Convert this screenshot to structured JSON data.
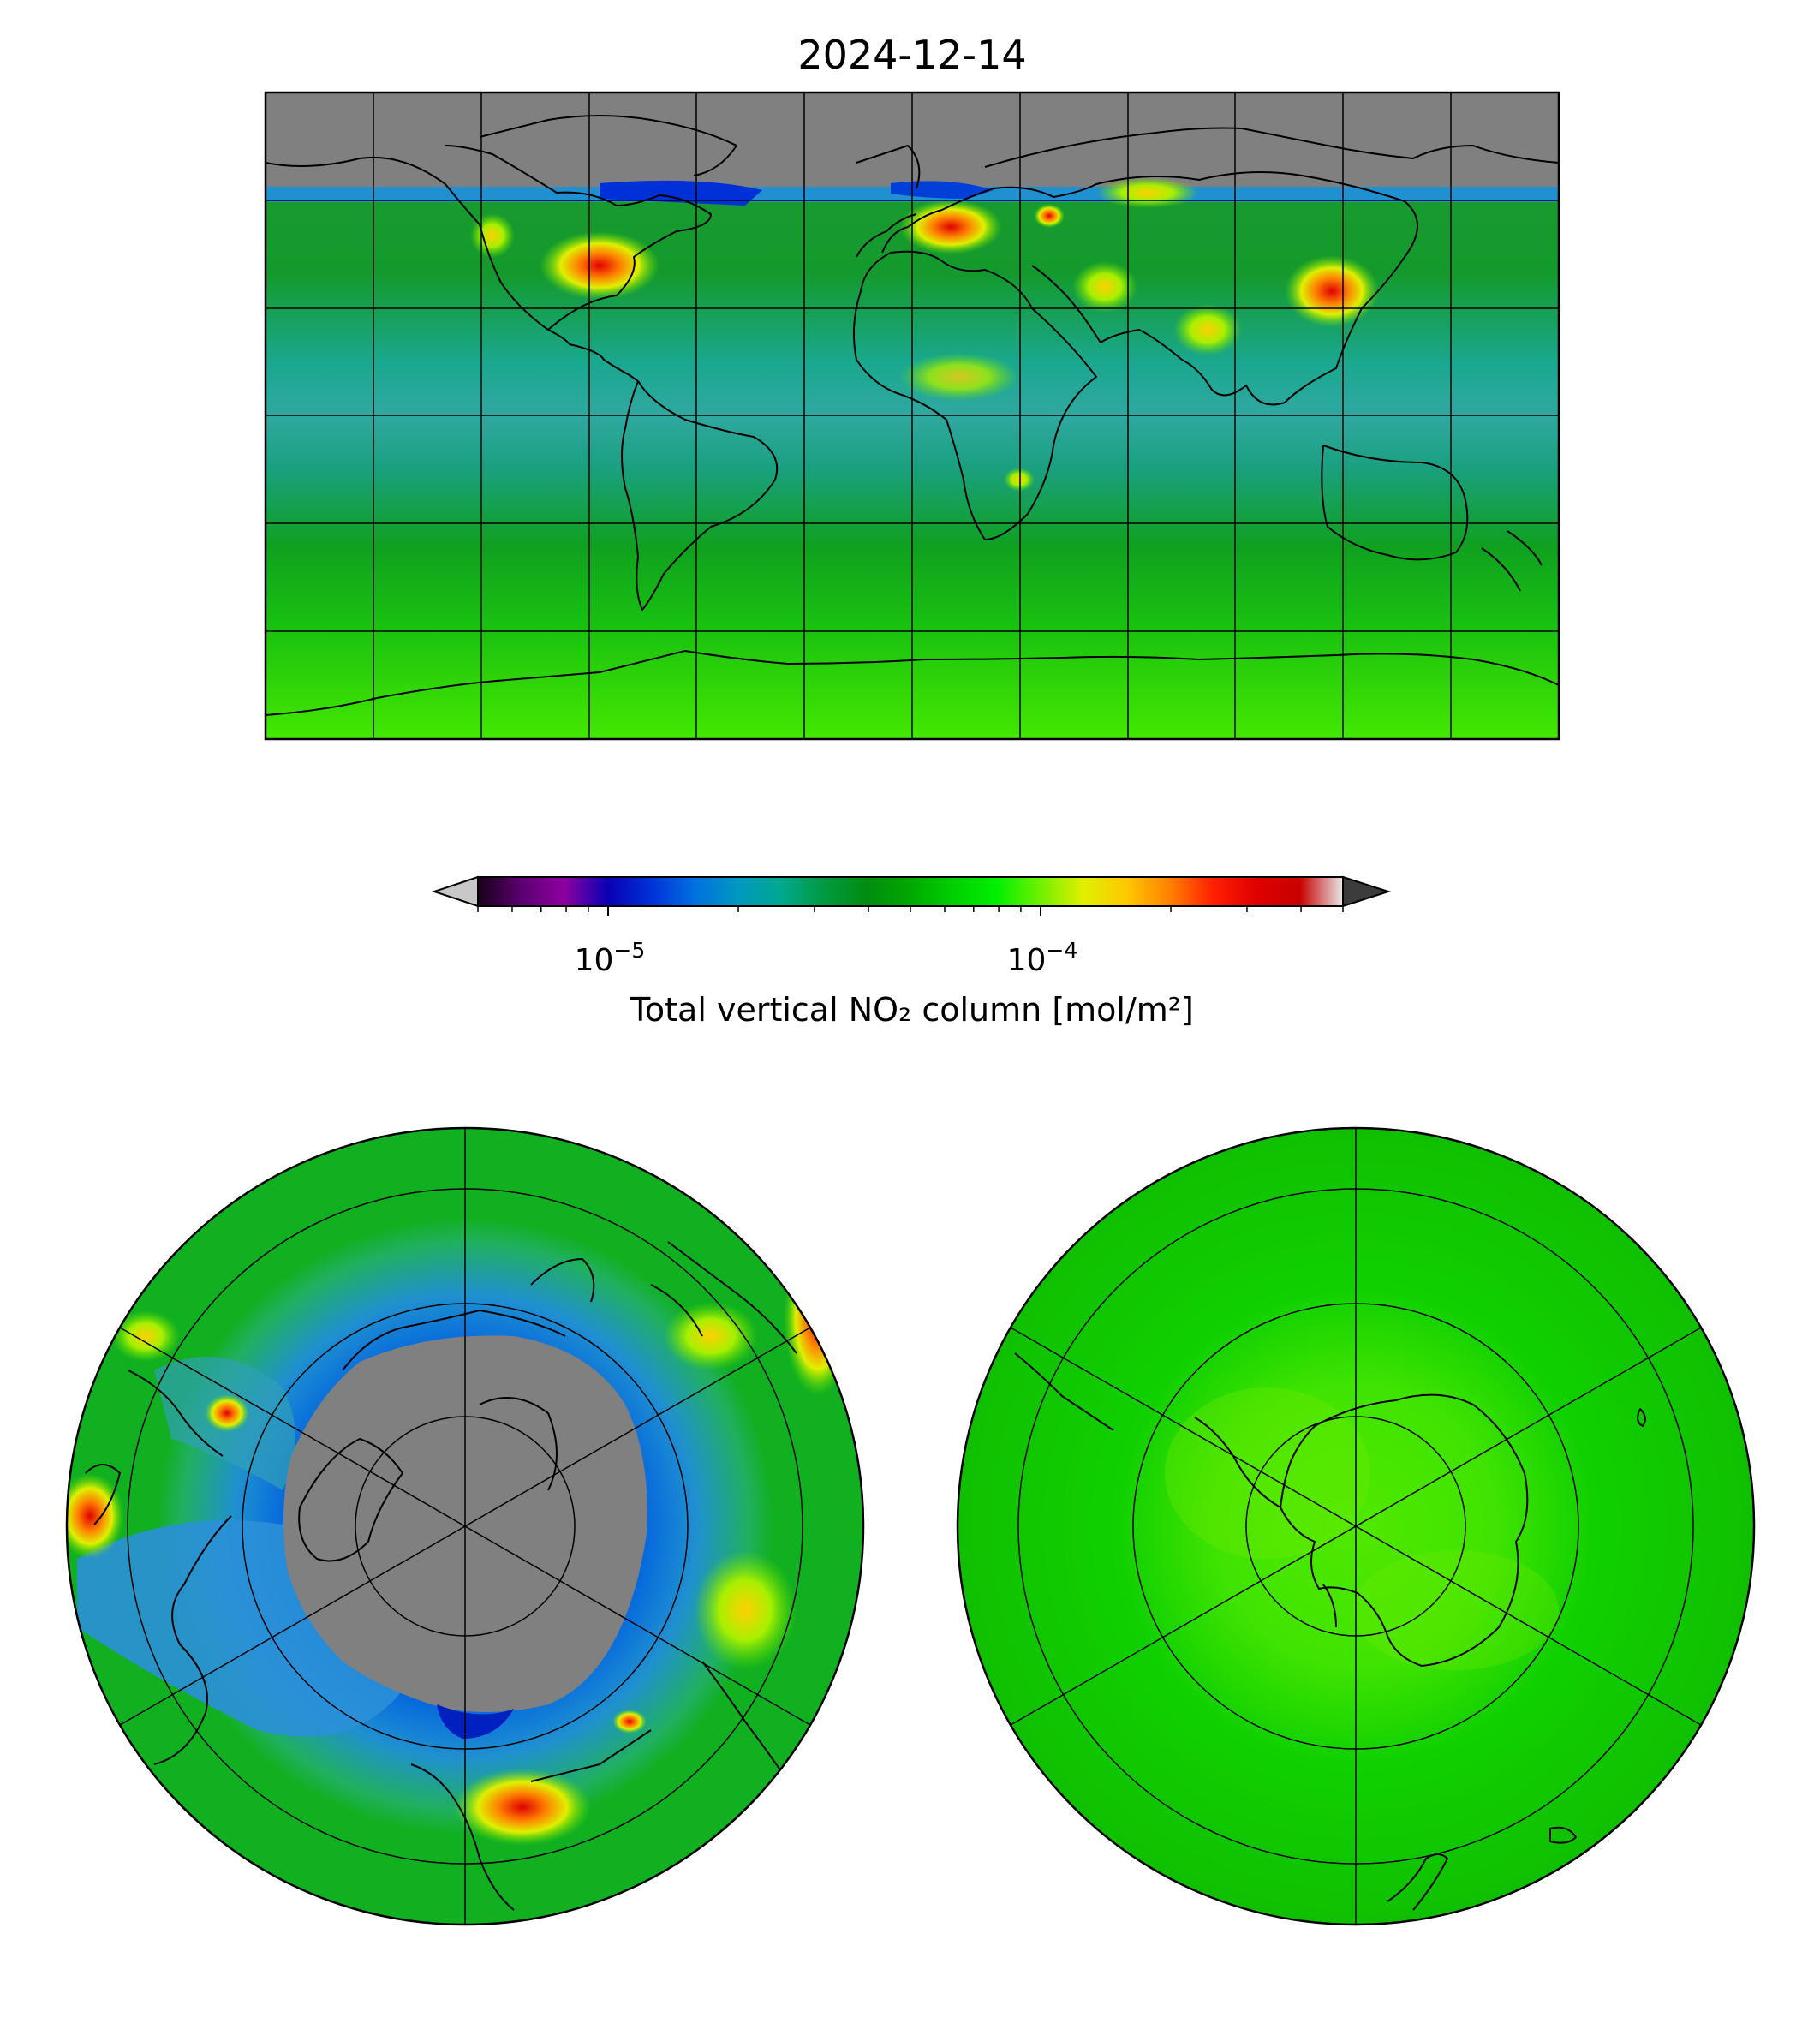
{
  "title": "2024-12-14",
  "colorbar": {
    "label": "Total vertical NO₂ column [mol/m²]",
    "scale": "log",
    "range": [
      5e-06,
      0.0005
    ],
    "extend": "both",
    "ticks": [
      {
        "value": 1e-05,
        "base": "10",
        "exponent": "−5"
      },
      {
        "value": 0.0001,
        "base": "10",
        "exponent": "−4"
      }
    ],
    "colors": [
      "#1a0018",
      "#5a0070",
      "#8c00a0",
      "#0a00b4",
      "#0030d8",
      "#0070e0",
      "#0098c0",
      "#00a890",
      "#009a40",
      "#008c10",
      "#00a800",
      "#00d000",
      "#00f000",
      "#70f000",
      "#e0f000",
      "#ffc800",
      "#ff8000",
      "#ff2000",
      "#e00000",
      "#c80000",
      "#e8e8e8"
    ],
    "under_color": "#c8c8c8",
    "over_color": "#3c3c3c"
  },
  "maps": {
    "global": {
      "projection": "plate-carree"
    },
    "north": {
      "projection": "north-polar-stereographic"
    },
    "south": {
      "projection": "south-polar-stereographic"
    }
  },
  "palette": {
    "no_data": "#808080",
    "background_field": "#00b400"
  }
}
